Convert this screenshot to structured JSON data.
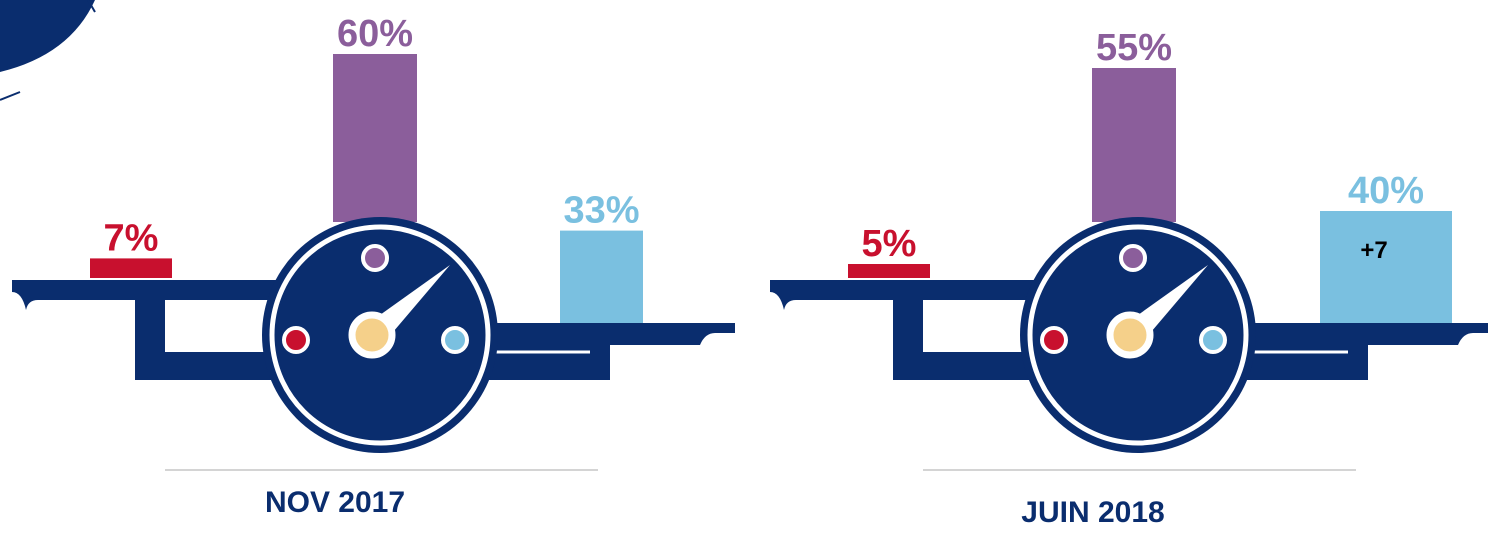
{
  "chart_data": [
    {
      "type": "bar",
      "title": "NOV 2017",
      "values": [
        7,
        60,
        33
      ],
      "value_labels": [
        "7%",
        "60%",
        "33%"
      ],
      "colors": [
        "#c8102e",
        "#8b5e9b",
        "#7ac0e0"
      ]
    },
    {
      "type": "bar",
      "title": "JUIN 2018",
      "values": [
        5,
        55,
        40
      ],
      "value_labels": [
        "5%",
        "55%",
        "40%"
      ],
      "colors": [
        "#c8102e",
        "#8b5e9b",
        "#7ac0e0"
      ],
      "annotation": "+7"
    }
  ]
}
